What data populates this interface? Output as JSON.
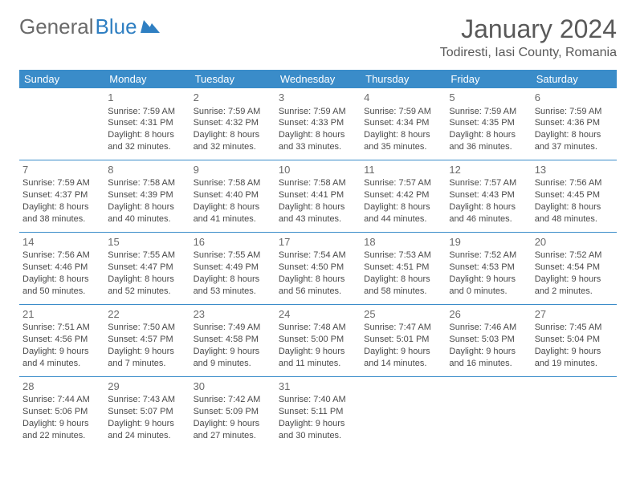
{
  "logo": {
    "text1": "General",
    "text2": "Blue"
  },
  "title": "January 2024",
  "location": "Todiresti, Iasi County, Romania",
  "colors": {
    "header_bg": "#3a8cc9",
    "header_text": "#ffffff",
    "title_color": "#595959",
    "body_text": "#4a4a4a",
    "logo_gray": "#6a6a6a",
    "logo_blue": "#2f7fc2",
    "border": "#3a8cc9",
    "background": "#ffffff"
  },
  "day_headers": [
    "Sunday",
    "Monday",
    "Tuesday",
    "Wednesday",
    "Thursday",
    "Friday",
    "Saturday"
  ],
  "weeks": [
    [
      null,
      {
        "n": "1",
        "sr": "7:59 AM",
        "ss": "4:31 PM",
        "dl1": "8 hours",
        "dl2": "and 32 minutes."
      },
      {
        "n": "2",
        "sr": "7:59 AM",
        "ss": "4:32 PM",
        "dl1": "8 hours",
        "dl2": "and 32 minutes."
      },
      {
        "n": "3",
        "sr": "7:59 AM",
        "ss": "4:33 PM",
        "dl1": "8 hours",
        "dl2": "and 33 minutes."
      },
      {
        "n": "4",
        "sr": "7:59 AM",
        "ss": "4:34 PM",
        "dl1": "8 hours",
        "dl2": "and 35 minutes."
      },
      {
        "n": "5",
        "sr": "7:59 AM",
        "ss": "4:35 PM",
        "dl1": "8 hours",
        "dl2": "and 36 minutes."
      },
      {
        "n": "6",
        "sr": "7:59 AM",
        "ss": "4:36 PM",
        "dl1": "8 hours",
        "dl2": "and 37 minutes."
      }
    ],
    [
      {
        "n": "7",
        "sr": "7:59 AM",
        "ss": "4:37 PM",
        "dl1": "8 hours",
        "dl2": "and 38 minutes."
      },
      {
        "n": "8",
        "sr": "7:58 AM",
        "ss": "4:39 PM",
        "dl1": "8 hours",
        "dl2": "and 40 minutes."
      },
      {
        "n": "9",
        "sr": "7:58 AM",
        "ss": "4:40 PM",
        "dl1": "8 hours",
        "dl2": "and 41 minutes."
      },
      {
        "n": "10",
        "sr": "7:58 AM",
        "ss": "4:41 PM",
        "dl1": "8 hours",
        "dl2": "and 43 minutes."
      },
      {
        "n": "11",
        "sr": "7:57 AM",
        "ss": "4:42 PM",
        "dl1": "8 hours",
        "dl2": "and 44 minutes."
      },
      {
        "n": "12",
        "sr": "7:57 AM",
        "ss": "4:43 PM",
        "dl1": "8 hours",
        "dl2": "and 46 minutes."
      },
      {
        "n": "13",
        "sr": "7:56 AM",
        "ss": "4:45 PM",
        "dl1": "8 hours",
        "dl2": "and 48 minutes."
      }
    ],
    [
      {
        "n": "14",
        "sr": "7:56 AM",
        "ss": "4:46 PM",
        "dl1": "8 hours",
        "dl2": "and 50 minutes."
      },
      {
        "n": "15",
        "sr": "7:55 AM",
        "ss": "4:47 PM",
        "dl1": "8 hours",
        "dl2": "and 52 minutes."
      },
      {
        "n": "16",
        "sr": "7:55 AM",
        "ss": "4:49 PM",
        "dl1": "8 hours",
        "dl2": "and 53 minutes."
      },
      {
        "n": "17",
        "sr": "7:54 AM",
        "ss": "4:50 PM",
        "dl1": "8 hours",
        "dl2": "and 56 minutes."
      },
      {
        "n": "18",
        "sr": "7:53 AM",
        "ss": "4:51 PM",
        "dl1": "8 hours",
        "dl2": "and 58 minutes."
      },
      {
        "n": "19",
        "sr": "7:52 AM",
        "ss": "4:53 PM",
        "dl1": "9 hours",
        "dl2": "and 0 minutes."
      },
      {
        "n": "20",
        "sr": "7:52 AM",
        "ss": "4:54 PM",
        "dl1": "9 hours",
        "dl2": "and 2 minutes."
      }
    ],
    [
      {
        "n": "21",
        "sr": "7:51 AM",
        "ss": "4:56 PM",
        "dl1": "9 hours",
        "dl2": "and 4 minutes."
      },
      {
        "n": "22",
        "sr": "7:50 AM",
        "ss": "4:57 PM",
        "dl1": "9 hours",
        "dl2": "and 7 minutes."
      },
      {
        "n": "23",
        "sr": "7:49 AM",
        "ss": "4:58 PM",
        "dl1": "9 hours",
        "dl2": "and 9 minutes."
      },
      {
        "n": "24",
        "sr": "7:48 AM",
        "ss": "5:00 PM",
        "dl1": "9 hours",
        "dl2": "and 11 minutes."
      },
      {
        "n": "25",
        "sr": "7:47 AM",
        "ss": "5:01 PM",
        "dl1": "9 hours",
        "dl2": "and 14 minutes."
      },
      {
        "n": "26",
        "sr": "7:46 AM",
        "ss": "5:03 PM",
        "dl1": "9 hours",
        "dl2": "and 16 minutes."
      },
      {
        "n": "27",
        "sr": "7:45 AM",
        "ss": "5:04 PM",
        "dl1": "9 hours",
        "dl2": "and 19 minutes."
      }
    ],
    [
      {
        "n": "28",
        "sr": "7:44 AM",
        "ss": "5:06 PM",
        "dl1": "9 hours",
        "dl2": "and 22 minutes."
      },
      {
        "n": "29",
        "sr": "7:43 AM",
        "ss": "5:07 PM",
        "dl1": "9 hours",
        "dl2": "and 24 minutes."
      },
      {
        "n": "30",
        "sr": "7:42 AM",
        "ss": "5:09 PM",
        "dl1": "9 hours",
        "dl2": "and 27 minutes."
      },
      {
        "n": "31",
        "sr": "7:40 AM",
        "ss": "5:11 PM",
        "dl1": "9 hours",
        "dl2": "and 30 minutes."
      },
      null,
      null,
      null
    ]
  ],
  "labels": {
    "sunrise": "Sunrise: ",
    "sunset": "Sunset: ",
    "daylight": "Daylight: "
  }
}
